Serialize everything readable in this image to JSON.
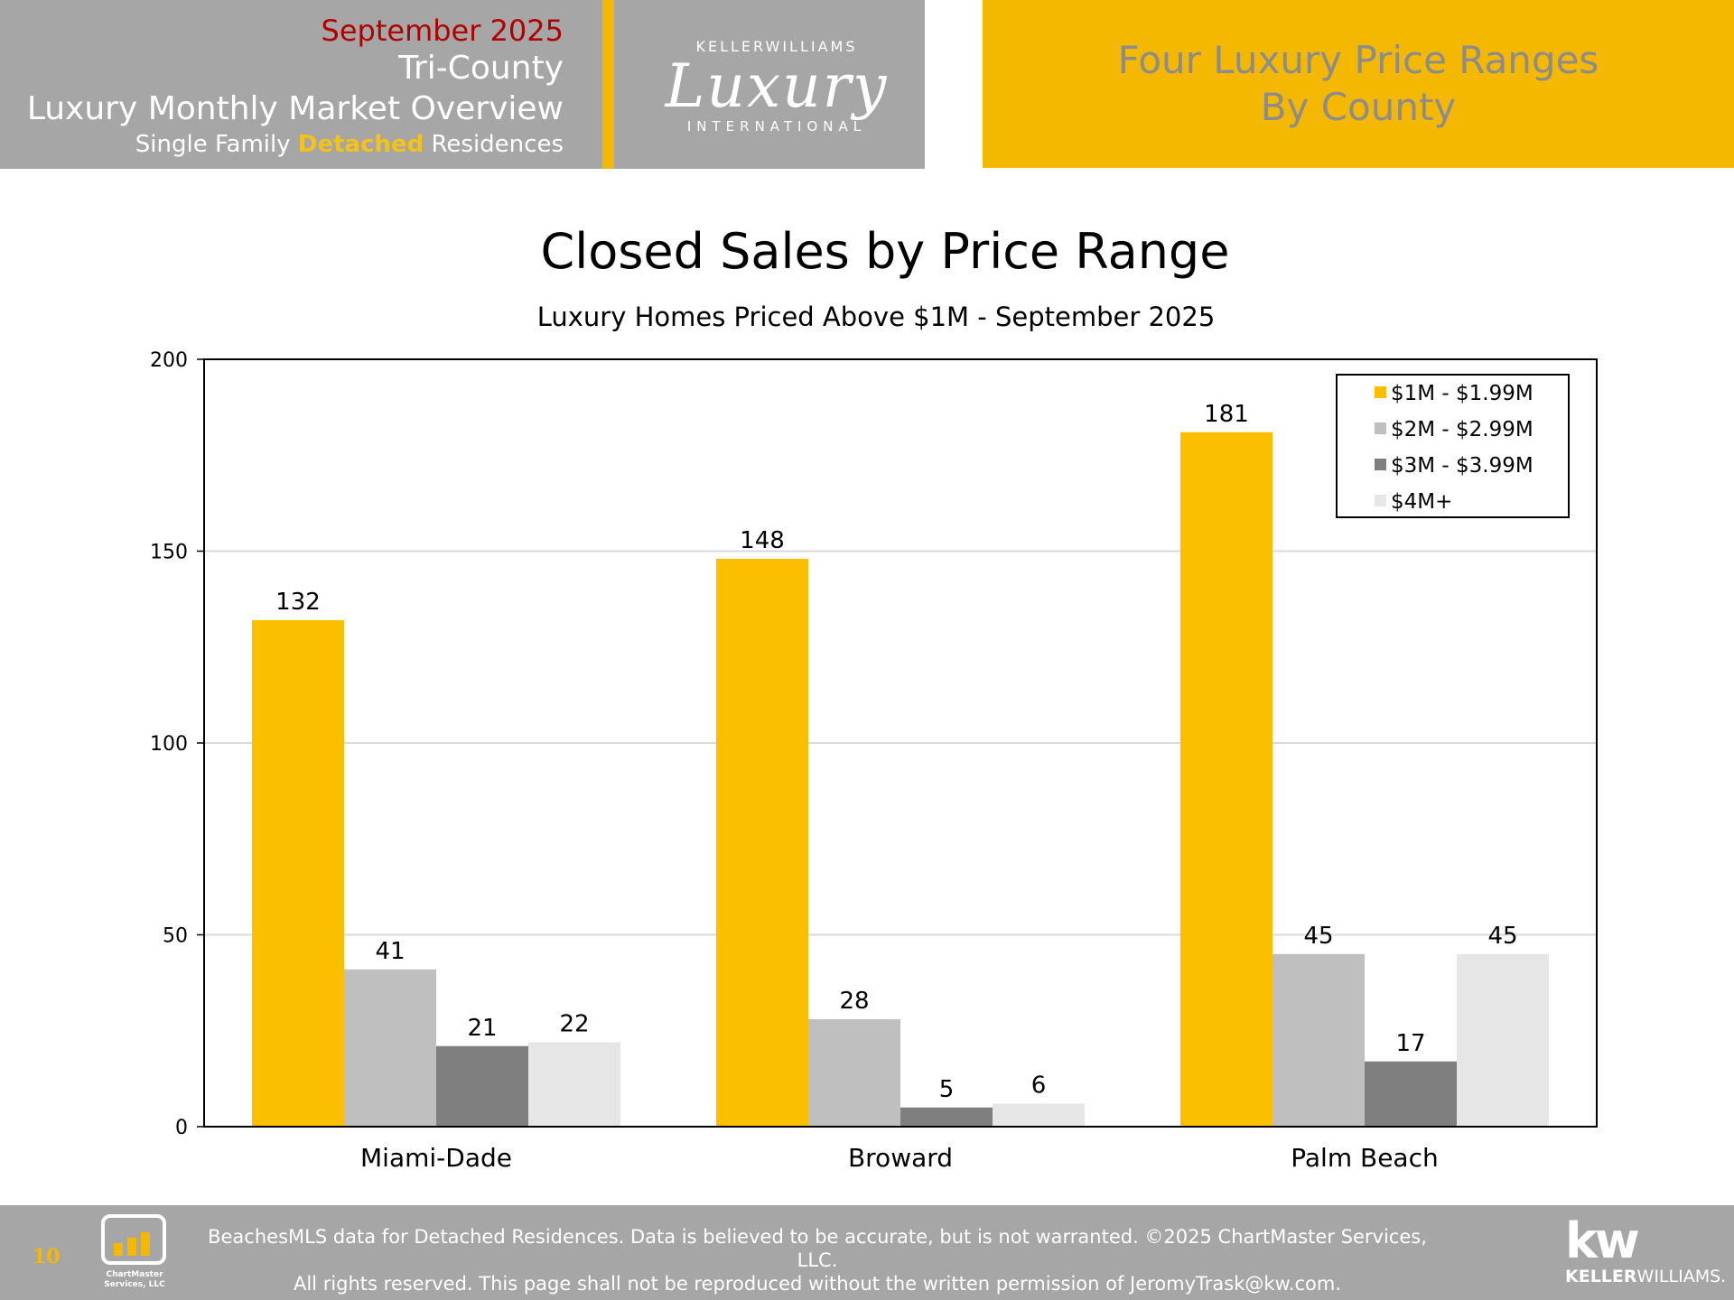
{
  "header": {
    "month": "September 2025",
    "region": "Tri-County",
    "overview": "Luxury Monthly Market Overview",
    "subtitle_pre": "Single Family ",
    "subtitle_accent": "Detached",
    "subtitle_post": " Residences",
    "logo_top": "KELLERWILLIAMS",
    "logo_main": "Luxury",
    "logo_bottom": "INTERNATIONAL",
    "right_title_line1": "Four Luxury Price Ranges",
    "right_title_line2": "By County"
  },
  "chart_data": {
    "type": "bar",
    "title": "Closed Sales by Price Range",
    "subtitle": "Luxury Homes Priced Above $1M - September 2025",
    "categories": [
      "Miami-Dade",
      "Broward",
      "Palm Beach"
    ],
    "series": [
      {
        "name": "$1M - $1.99M",
        "values": [
          132,
          148,
          181
        ],
        "color": "#fbbf00"
      },
      {
        "name": "$2M - $2.99M",
        "values": [
          41,
          28,
          45
        ],
        "color": "#bfbfbf"
      },
      {
        "name": "$3M - $3.99M",
        "values": [
          21,
          5,
          17
        ],
        "color": "#7f7f7f"
      },
      {
        "name": "$4M+",
        "values": [
          22,
          6,
          45
        ],
        "color": "#e6e6e6"
      }
    ],
    "ylim": [
      0,
      200
    ],
    "yticks": [
      0,
      50,
      100,
      150,
      200
    ],
    "grid": true,
    "legend": "top-right",
    "data_labels": true
  },
  "footer": {
    "page_number": "10",
    "chartmaster_line1": "ChartMaster",
    "chartmaster_line2": "Services, LLC",
    "disclaimer_line1": "BeachesMLS data for Detached Residences.  Data is believed to be accurate, but is not warranted.   ©2025  ChartMaster Services, LLC.",
    "disclaimer_line2": "All rights reserved. This page shall not be reproduced without the written permission of JeromyTrask@kw.com.",
    "kw_mark": "kw",
    "kw_name_bold": "KELLER",
    "kw_name_rest": "WILLIAMS."
  }
}
